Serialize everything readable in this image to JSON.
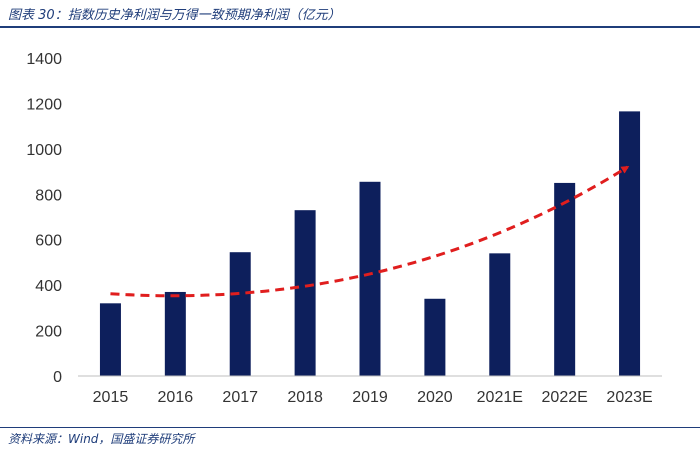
{
  "header": {
    "title": "图表 30：指数历史净利润与万得一致预期净利润（亿元）"
  },
  "footer": {
    "source": "资料来源：Wind，国盛证券研究所"
  },
  "colors": {
    "bar": "#0d1f5c",
    "trend": "#e01e1e",
    "text": "#1f3d7a"
  },
  "chart_data": {
    "type": "bar",
    "categories": [
      "2015",
      "2016",
      "2017",
      "2018",
      "2019",
      "2020",
      "2021E",
      "2022E",
      "2023E"
    ],
    "values": [
      320,
      370,
      545,
      730,
      855,
      340,
      540,
      850,
      1165
    ],
    "ylim": [
      0,
      1400
    ],
    "yticks": [
      "0",
      "200",
      "400",
      "600",
      "800",
      "1000",
      "1200",
      "1400"
    ],
    "trend": {
      "style": "dashed-arrow",
      "start": 362,
      "end": 920
    },
    "grid": false,
    "legend": "none"
  }
}
